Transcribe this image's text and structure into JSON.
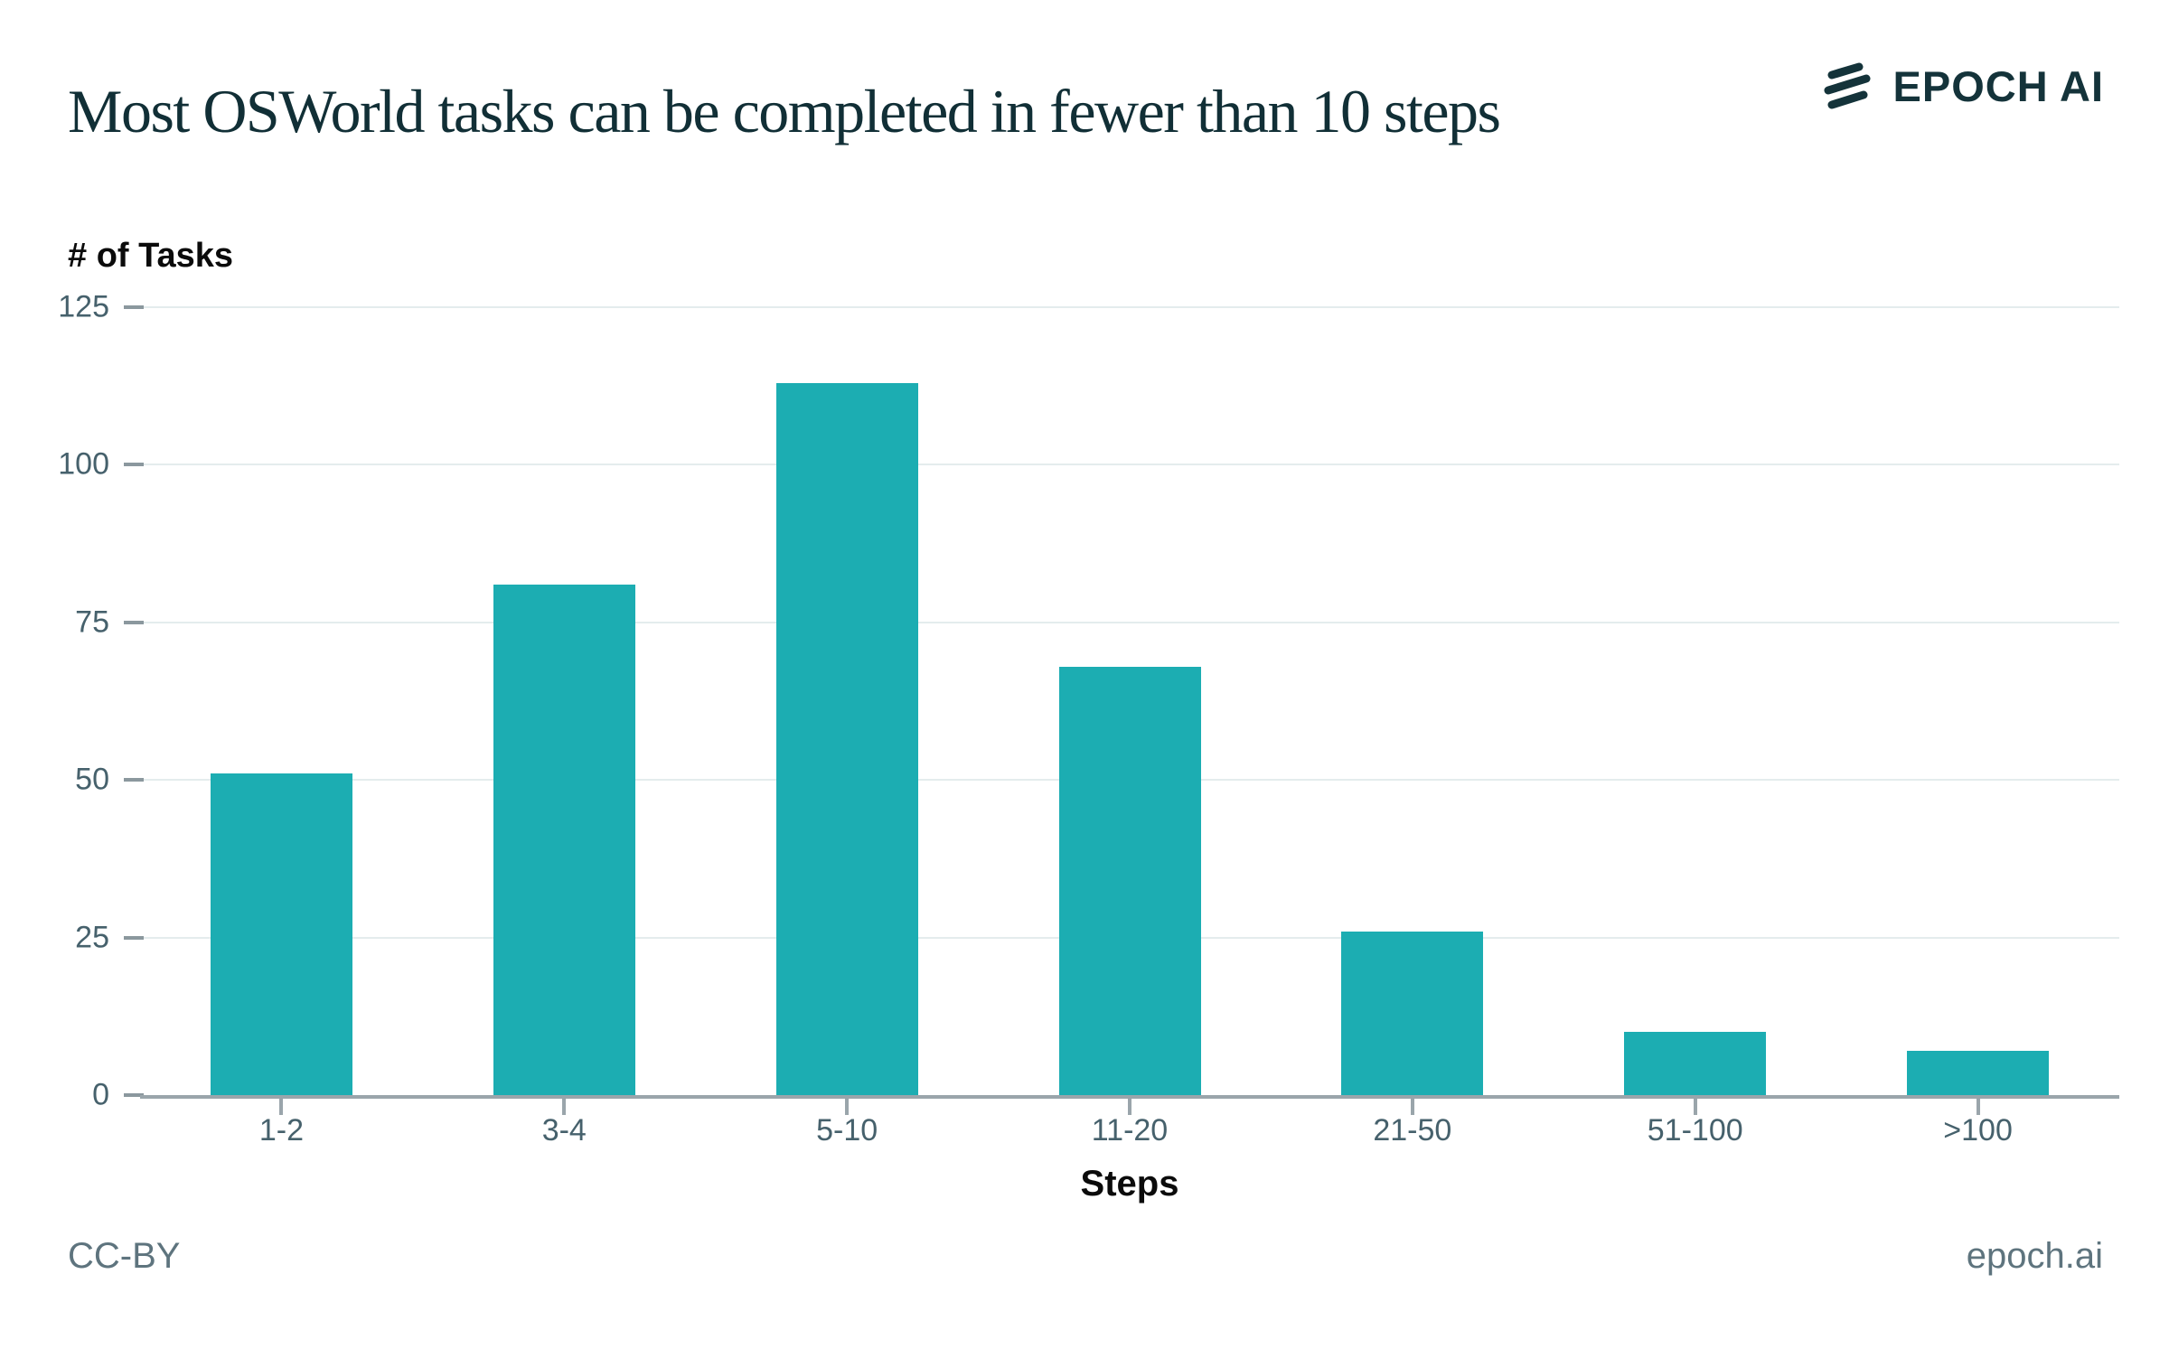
{
  "title": "Most OSWorld tasks can be completed in fewer than 10 steps",
  "logo": {
    "text": "EPOCH AI",
    "icon": "epoch-three-stripes-icon"
  },
  "footer": {
    "license": "CC-BY",
    "source": "epoch.ai"
  },
  "colors": {
    "bar": "#1cadb2",
    "title_text": "#112f36",
    "logo_dark": "#14333a",
    "axis_title_text": "#0b0b0b",
    "tick_label": "#46616c",
    "gridline": "#e4eced",
    "axis_line": "#9aa5ab",
    "footer_text": "#5e747e",
    "background": "#ffffff"
  },
  "chart_data": {
    "type": "bar",
    "title": "Most OSWorld tasks can be completed in fewer than 10 steps",
    "categories": [
      "1-2",
      "3-4",
      "5-10",
      "11-20",
      "21-50",
      "51-100",
      ">100"
    ],
    "values": [
      51,
      81,
      113,
      68,
      26,
      10,
      7
    ],
    "xlabel": "Steps",
    "ylabel": "# of Tasks",
    "ylim": [
      0,
      125
    ],
    "yticks": [
      0,
      25,
      50,
      75,
      100,
      125
    ],
    "grid": true,
    "legend_position": "none",
    "bar_color": "#1cadb2"
  }
}
